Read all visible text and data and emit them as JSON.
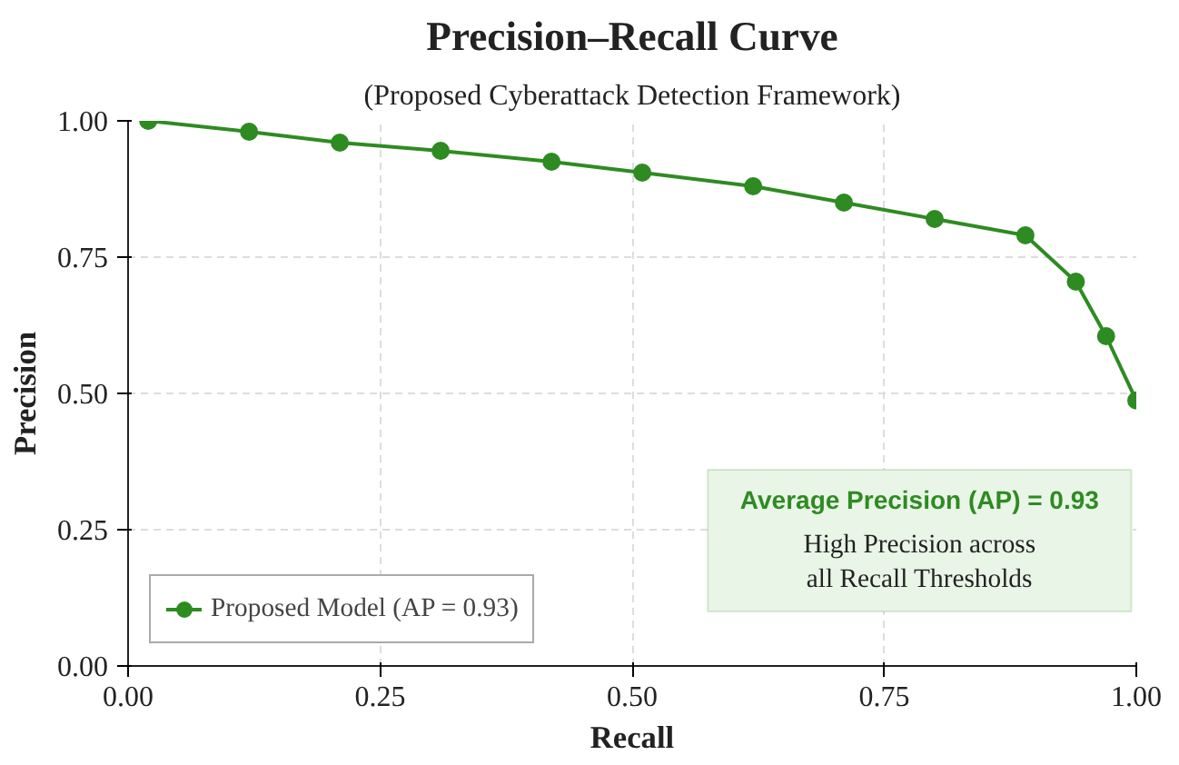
{
  "chart_data": {
    "type": "line",
    "title": "Precision–Recall Curve",
    "subtitle": "(Proposed Cyberattack Detection Framework)",
    "xlabel": "Recall",
    "ylabel": "Precision",
    "x": [
      0.02,
      0.12,
      0.21,
      0.31,
      0.42,
      0.51,
      0.62,
      0.71,
      0.8,
      0.89,
      0.94,
      0.97,
      1.0
    ],
    "series": [
      {
        "name": "Proposed Model (AP = 0.93)",
        "color": "#2e8b22",
        "values": [
          1.0,
          0.98,
          0.96,
          0.945,
          0.925,
          0.905,
          0.88,
          0.85,
          0.82,
          0.79,
          0.705,
          0.605,
          0.487
        ]
      }
    ],
    "xlim": [
      0,
      1
    ],
    "ylim": [
      0,
      1
    ],
    "xticks": [
      {
        "value": 0,
        "label": "0.00"
      },
      0.25,
      {
        "value": 0.5,
        "label": "0.50"
      },
      0.75,
      {
        "value": 1,
        "label": "1.00"
      }
    ],
    "yticks": [
      {
        "value": 0,
        "label": "0.00"
      },
      0.25,
      {
        "value": 0.5,
        "label": "0.50"
      },
      0.75,
      {
        "value": 1,
        "label": "1.00"
      }
    ],
    "grid": true,
    "legend": "bottom left",
    "marker": "circle",
    "line_style": "solid",
    "annotations": [
      "Average Precision (AP) = 0.93",
      "High Precision across\nall Recall Thresholds"
    ]
  }
}
